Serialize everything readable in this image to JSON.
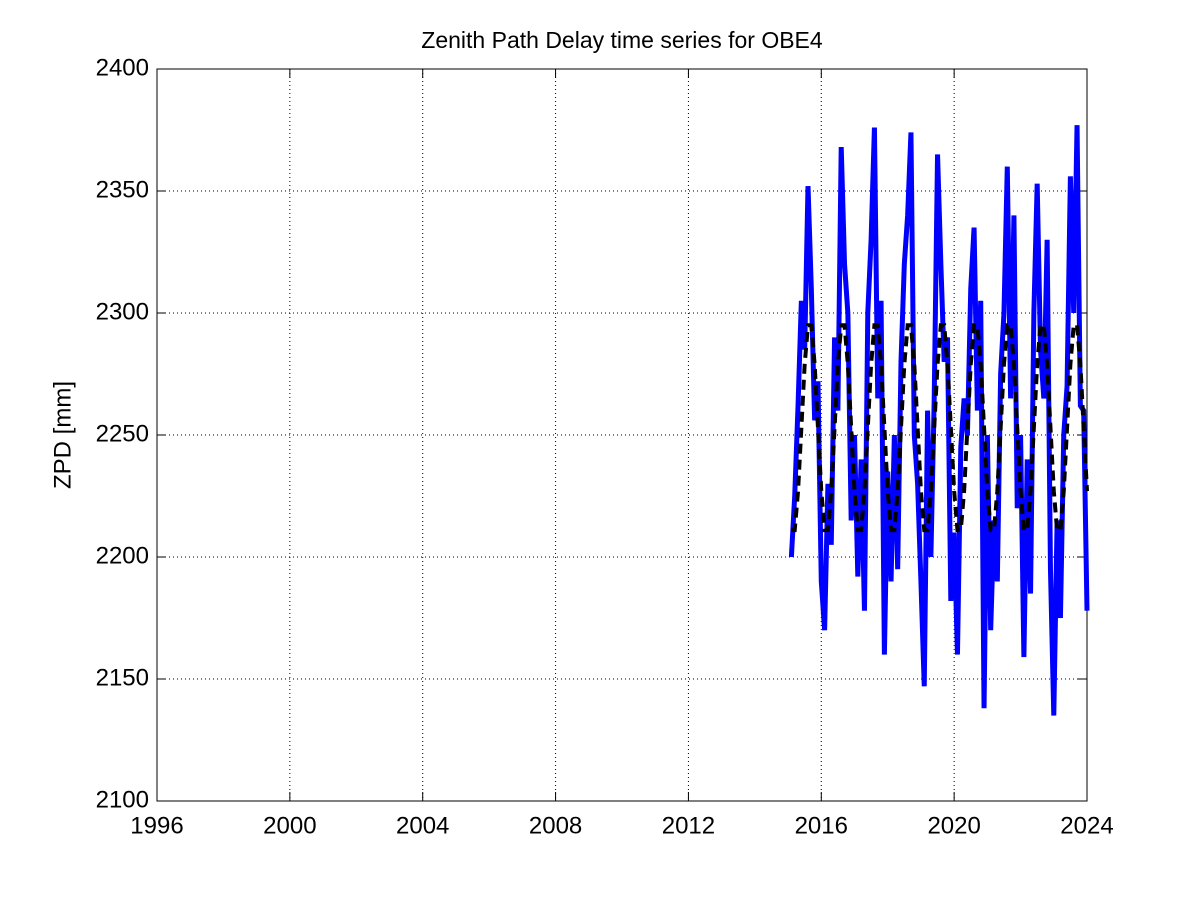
{
  "chart_data": {
    "type": "line",
    "title": "Zenith Path Delay time series for OBE4",
    "y_label": "ZPD [mm]",
    "x": [
      2015.1,
      2015.2,
      2015.3,
      2015.4,
      2015.5,
      2015.6,
      2015.7,
      2015.8,
      2015.9,
      2016.0,
      2016.1,
      2016.2,
      2016.3,
      2016.4,
      2016.5,
      2016.6,
      2016.7,
      2016.8,
      2016.9,
      2017.0,
      2017.1,
      2017.2,
      2017.3,
      2017.4,
      2017.5,
      2017.6,
      2017.7,
      2017.8,
      2017.9,
      2018.0,
      2018.1,
      2018.2,
      2018.3,
      2018.4,
      2018.5,
      2018.6,
      2018.7,
      2018.8,
      2018.9,
      2019.0,
      2019.1,
      2019.2,
      2019.3,
      2019.4,
      2019.5,
      2019.6,
      2019.7,
      2019.8,
      2019.9,
      2020.0,
      2020.1,
      2020.2,
      2020.3,
      2020.4,
      2020.5,
      2020.6,
      2020.7,
      2020.8,
      2020.9,
      2021.0,
      2021.1,
      2021.2,
      2021.3,
      2021.4,
      2021.5,
      2021.6,
      2021.7,
      2021.8,
      2021.9,
      2022.0,
      2022.1,
      2022.2,
      2022.3,
      2022.4,
      2022.5,
      2022.6,
      2022.7,
      2022.8,
      2022.9,
      2023.0,
      2023.1,
      2023.2,
      2023.3,
      2023.4,
      2023.5,
      2023.6,
      2023.7,
      2023.8,
      2023.9,
      2024.0
    ],
    "series": [
      {
        "color": "#0000ff",
        "linestyle": "solid",
        "values": [
          2200,
          2225,
          2262,
          2305,
          2285,
          2352,
          2310,
          2256,
          2272,
          2190,
          2170,
          2230,
          2205,
          2290,
          2260,
          2368,
          2320,
          2300,
          2215,
          2250,
          2192,
          2240,
          2178,
          2300,
          2330,
          2376,
          2265,
          2305,
          2160,
          2235,
          2190,
          2250,
          2195,
          2280,
          2320,
          2340,
          2374,
          2250,
          2230,
          2190,
          2147,
          2260,
          2200,
          2265,
          2365,
          2320,
          2280,
          2290,
          2182,
          2210,
          2160,
          2245,
          2265,
          2250,
          2310,
          2335,
          2260,
          2305,
          2138,
          2250,
          2170,
          2215,
          2190,
          2275,
          2300,
          2360,
          2265,
          2340,
          2220,
          2250,
          2159,
          2240,
          2185,
          2300,
          2353,
          2285,
          2265,
          2330,
          2195,
          2135,
          2215,
          2175,
          2250,
          2270,
          2356,
          2300,
          2377,
          2262,
          2260,
          2178
        ]
      },
      {
        "color": "#000000",
        "linestyle": "dashed",
        "values": [
          2211,
          2211,
          2227,
          2253,
          2279,
          2295,
          2295,
          2279,
          2253,
          2227,
          2211,
          2211,
          2227,
          2253,
          2279,
          2295,
          2295,
          2279,
          2253,
          2227,
          2211,
          2211,
          2227,
          2253,
          2279,
          2295,
          2295,
          2279,
          2253,
          2227,
          2211,
          2211,
          2227,
          2253,
          2279,
          2295,
          2295,
          2279,
          2253,
          2227,
          2211,
          2211,
          2227,
          2253,
          2279,
          2295,
          2295,
          2279,
          2253,
          2227,
          2211,
          2211,
          2227,
          2253,
          2279,
          2295,
          2295,
          2279,
          2253,
          2227,
          2211,
          2211,
          2227,
          2253,
          2279,
          2295,
          2295,
          2279,
          2253,
          2227,
          2211,
          2211,
          2227,
          2253,
          2279,
          2295,
          2295,
          2279,
          2253,
          2227,
          2211,
          2211,
          2227,
          2253,
          2279,
          2295,
          2295,
          2279,
          2253,
          2227
        ]
      }
    ],
    "xlim": [
      1996,
      2024
    ],
    "xticks": [
      1996,
      2000,
      2004,
      2008,
      2012,
      2016,
      2020,
      2024
    ],
    "ylim": [
      2100,
      2400
    ],
    "yticks": [
      2100,
      2150,
      2200,
      2250,
      2300,
      2350,
      2400
    ],
    "grid": true
  }
}
